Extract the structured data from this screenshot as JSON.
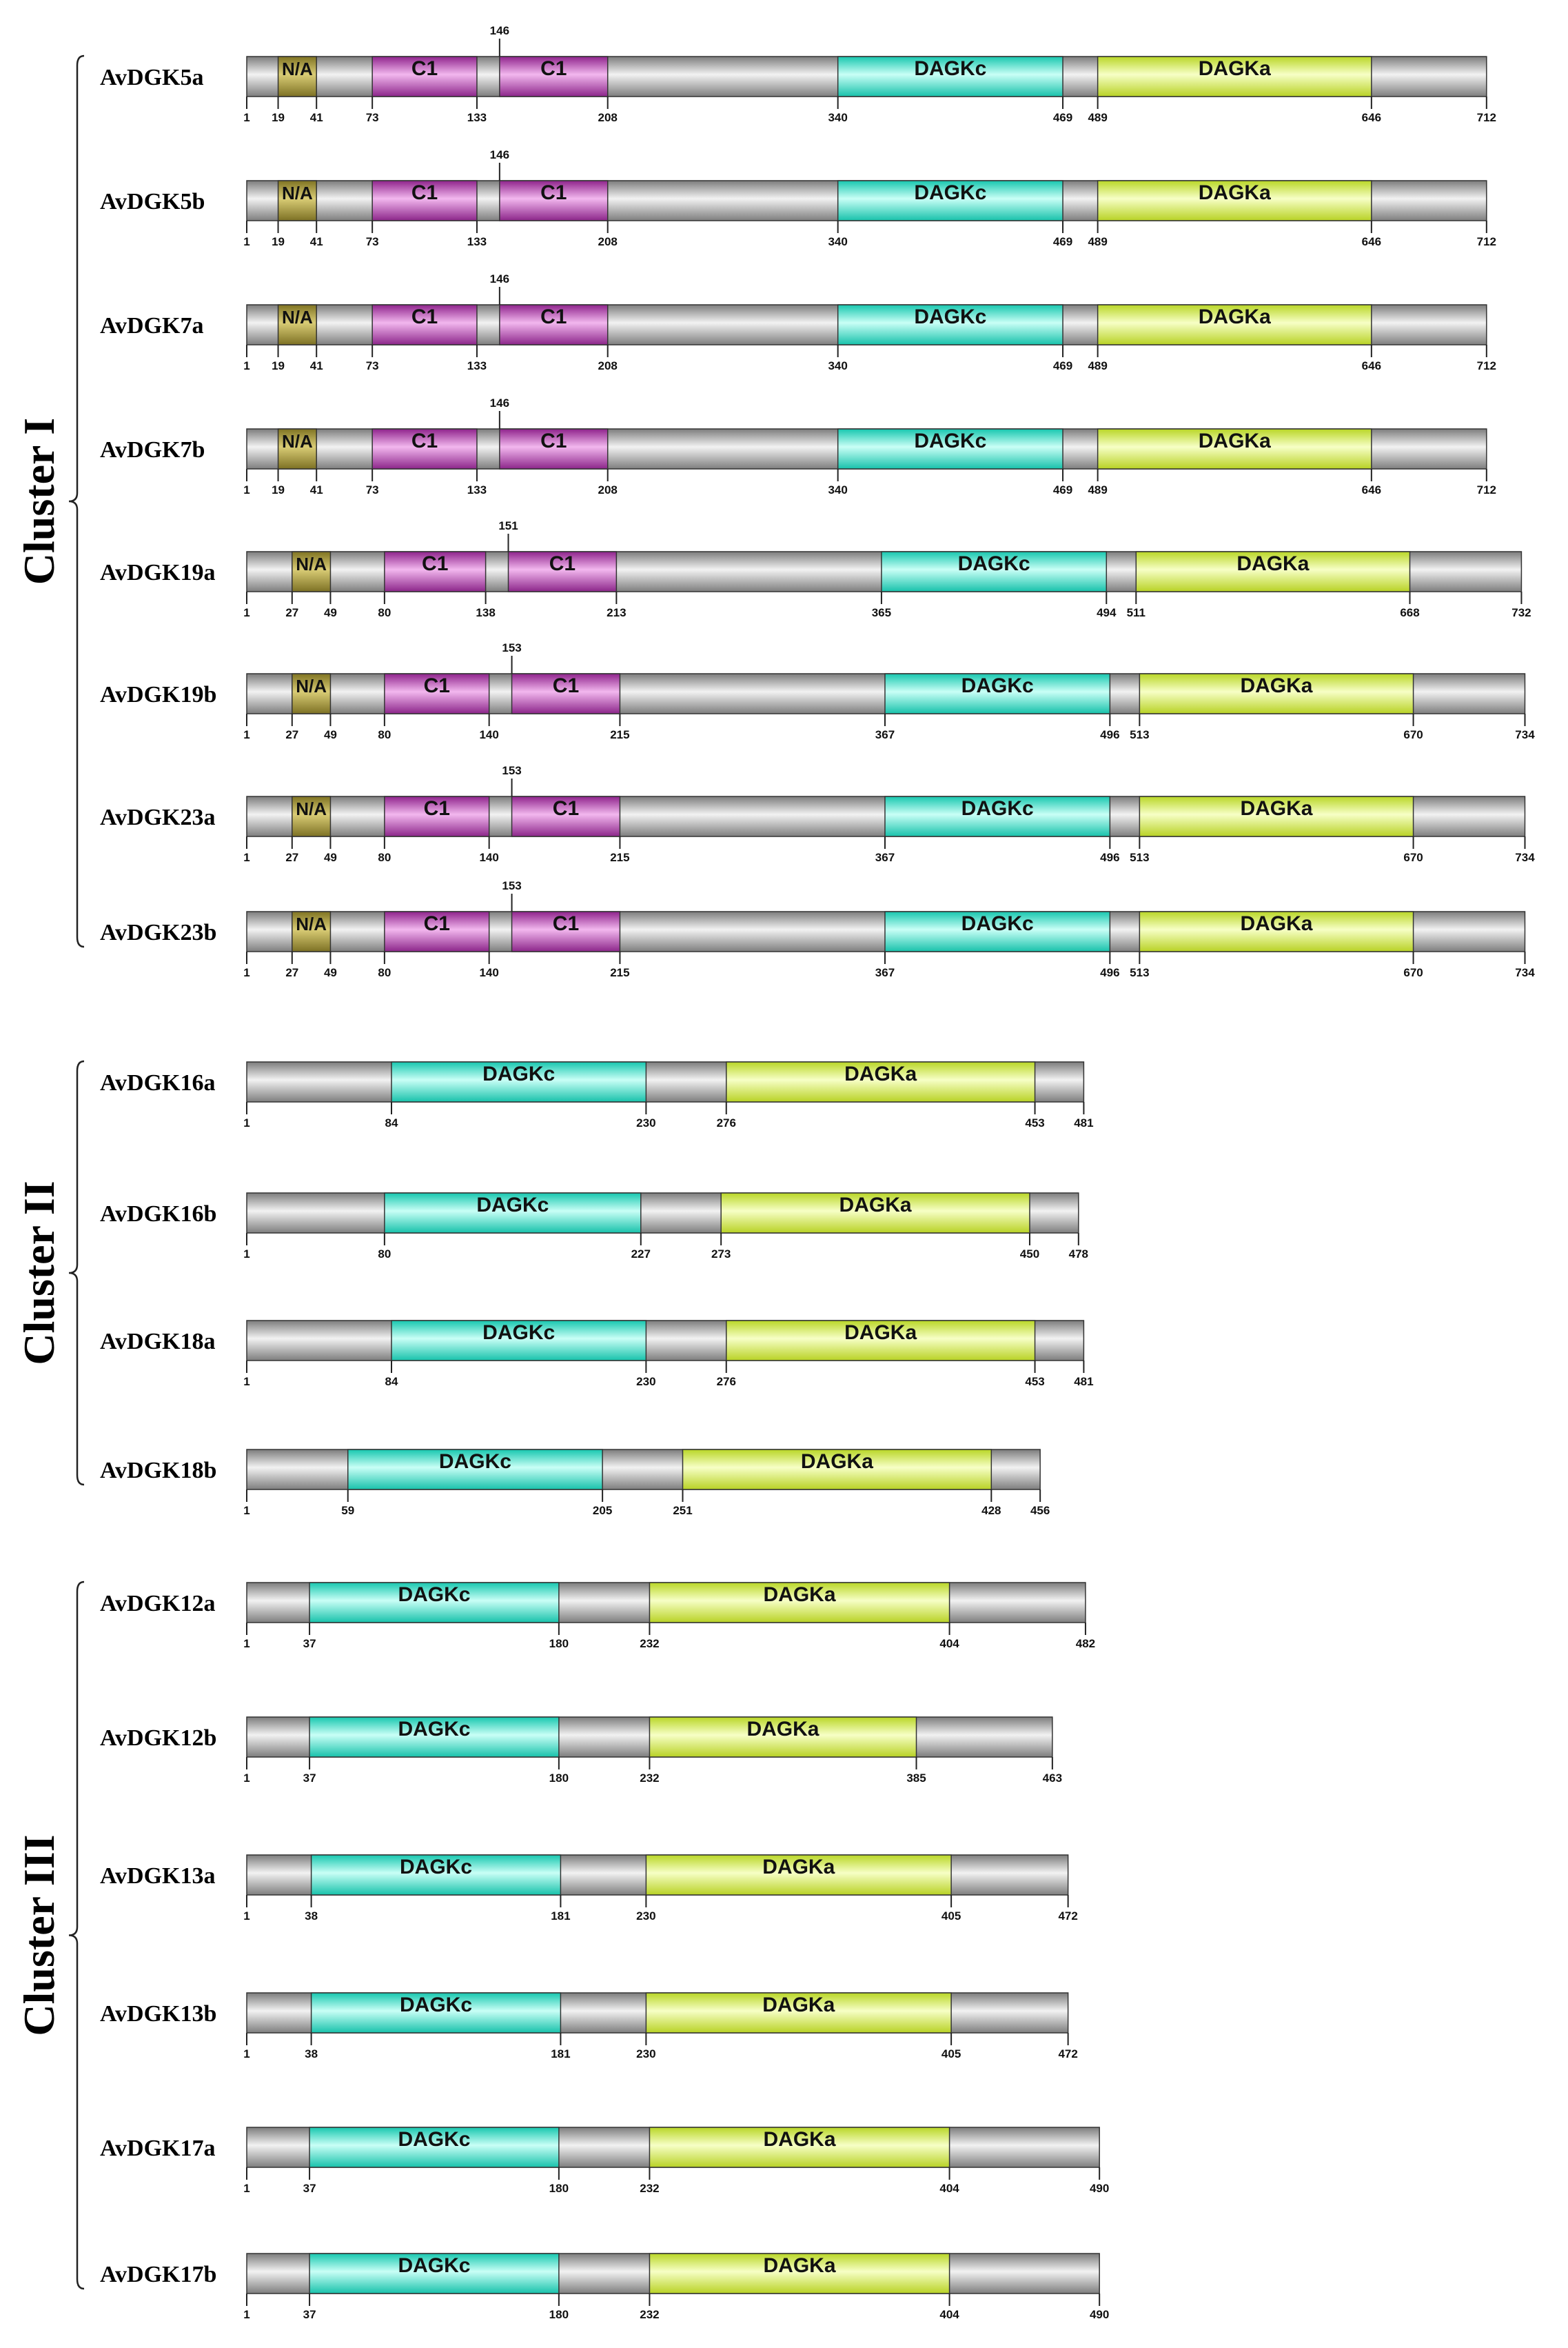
{
  "colors": {
    "C1": "#b93fb4",
    "DAGKc": "#3fe2cc",
    "DAGKa": "#daf254",
    "N/A": "#a79a3c",
    "backbone": "#a0a0a0"
  },
  "clusters": [
    {
      "label": "Cluster I",
      "proteins": [
        {
          "name": "AvDGK5a",
          "length": 712,
          "boundary_labels": [
            "1",
            "19",
            "41",
            "73",
            "133",
            "208",
            "340",
            "469",
            "489",
            "646",
            "712"
          ],
          "top_marker": "146",
          "domains": [
            {
              "type": "N/A",
              "label": "N/A",
              "start": 19,
              "end": 41
            },
            {
              "type": "C1",
              "label": "C1",
              "start": 73,
              "end": 133
            },
            {
              "type": "C1",
              "label": "C1",
              "start": 146,
              "end": 208
            },
            {
              "type": "DAGKc",
              "label": "DAGKc",
              "start": 340,
              "end": 469
            },
            {
              "type": "DAGKa",
              "label": "DAGKa",
              "start": 489,
              "end": 646
            }
          ]
        },
        {
          "name": "AvDGK5b",
          "length": 712,
          "boundary_labels": [
            "1",
            "19",
            "41",
            "73",
            "133",
            "208",
            "340",
            "469",
            "489",
            "646",
            "712"
          ],
          "top_marker": "146",
          "domains": [
            {
              "type": "N/A",
              "label": "N/A",
              "start": 19,
              "end": 41
            },
            {
              "type": "C1",
              "label": "C1",
              "start": 73,
              "end": 133
            },
            {
              "type": "C1",
              "label": "C1",
              "start": 146,
              "end": 208
            },
            {
              "type": "DAGKc",
              "label": "DAGKc",
              "start": 340,
              "end": 469
            },
            {
              "type": "DAGKa",
              "label": "DAGKa",
              "start": 489,
              "end": 646
            }
          ]
        },
        {
          "name": "AvDGK7a",
          "length": 712,
          "boundary_labels": [
            "1",
            "19",
            "41",
            "73",
            "133",
            "208",
            "340",
            "469",
            "489",
            "646",
            "712"
          ],
          "top_marker": "146",
          "domains": [
            {
              "type": "N/A",
              "label": "N/A",
              "start": 19,
              "end": 41
            },
            {
              "type": "C1",
              "label": "C1",
              "start": 73,
              "end": 133
            },
            {
              "type": "C1",
              "label": "C1",
              "start": 146,
              "end": 208
            },
            {
              "type": "DAGKc",
              "label": "DAGKc",
              "start": 340,
              "end": 469
            },
            {
              "type": "DAGKa",
              "label": "DAGKa",
              "start": 489,
              "end": 646
            }
          ]
        },
        {
          "name": "AvDGK7b",
          "length": 712,
          "boundary_labels": [
            "1",
            "19",
            "41",
            "73",
            "133",
            "208",
            "340",
            "469",
            "489",
            "646",
            "712"
          ],
          "top_marker": "146",
          "domains": [
            {
              "type": "N/A",
              "label": "N/A",
              "start": 19,
              "end": 41
            },
            {
              "type": "C1",
              "label": "C1",
              "start": 73,
              "end": 133
            },
            {
              "type": "C1",
              "label": "C1",
              "start": 146,
              "end": 208
            },
            {
              "type": "DAGKc",
              "label": "DAGKc",
              "start": 340,
              "end": 469
            },
            {
              "type": "DAGKa",
              "label": "DAGKa",
              "start": 489,
              "end": 646
            }
          ]
        },
        {
          "name": "AvDGK19a",
          "length": 732,
          "boundary_labels": [
            "1",
            "27",
            "49",
            "80",
            "138",
            "213",
            "365",
            "494",
            "511",
            "668",
            "732"
          ],
          "top_marker": "151",
          "domains": [
            {
              "type": "N/A",
              "label": "N/A",
              "start": 27,
              "end": 49
            },
            {
              "type": "C1",
              "label": "C1",
              "start": 80,
              "end": 138
            },
            {
              "type": "C1",
              "label": "C1",
              "start": 151,
              "end": 213
            },
            {
              "type": "DAGKc",
              "label": "DAGKc",
              "start": 365,
              "end": 494
            },
            {
              "type": "DAGKa",
              "label": "DAGKa",
              "start": 511,
              "end": 668
            }
          ]
        },
        {
          "name": "AvDGK19b",
          "length": 734,
          "boundary_labels": [
            "1",
            "27",
            "49",
            "80",
            "140",
            "215",
            "367",
            "496",
            "513",
            "670",
            "734"
          ],
          "top_marker": "153",
          "domains": [
            {
              "type": "N/A",
              "label": "N/A",
              "start": 27,
              "end": 49
            },
            {
              "type": "C1",
              "label": "C1",
              "start": 80,
              "end": 140
            },
            {
              "type": "C1",
              "label": "C1",
              "start": 153,
              "end": 215
            },
            {
              "type": "DAGKc",
              "label": "DAGKc",
              "start": 367,
              "end": 496
            },
            {
              "type": "DAGKa",
              "label": "DAGKa",
              "start": 513,
              "end": 670
            }
          ]
        },
        {
          "name": "AvDGK23a",
          "length": 734,
          "boundary_labels": [
            "1",
            "27",
            "49",
            "80",
            "140",
            "215",
            "367",
            "496",
            "513",
            "670",
            "734"
          ],
          "top_marker": "153",
          "domains": [
            {
              "type": "N/A",
              "label": "N/A",
              "start": 27,
              "end": 49
            },
            {
              "type": "C1",
              "label": "C1",
              "start": 80,
              "end": 140
            },
            {
              "type": "C1",
              "label": "C1",
              "start": 153,
              "end": 215
            },
            {
              "type": "DAGKc",
              "label": "DAGKc",
              "start": 367,
              "end": 496
            },
            {
              "type": "DAGKa",
              "label": "DAGKa",
              "start": 513,
              "end": 670
            }
          ]
        },
        {
          "name": "AvDGK23b",
          "length": 734,
          "boundary_labels": [
            "1",
            "27",
            "49",
            "80",
            "140",
            "215",
            "367",
            "496",
            "513",
            "670",
            "734"
          ],
          "top_marker": "153",
          "domains": [
            {
              "type": "N/A",
              "label": "N/A",
              "start": 27,
              "end": 49
            },
            {
              "type": "C1",
              "label": "C1",
              "start": 80,
              "end": 140
            },
            {
              "type": "C1",
              "label": "C1",
              "start": 153,
              "end": 215
            },
            {
              "type": "DAGKc",
              "label": "DAGKc",
              "start": 367,
              "end": 496
            },
            {
              "type": "DAGKa",
              "label": "DAGKa",
              "start": 513,
              "end": 670
            }
          ]
        }
      ]
    },
    {
      "label": "Cluster II",
      "proteins": [
        {
          "name": "AvDGK16a",
          "length": 481,
          "boundary_labels": [
            "1",
            "84",
            "230",
            "276",
            "453",
            "481"
          ],
          "top_marker": "",
          "domains": [
            {
              "type": "DAGKc",
              "label": "DAGKc",
              "start": 84,
              "end": 230
            },
            {
              "type": "DAGKa",
              "label": "DAGKa",
              "start": 276,
              "end": 453
            }
          ]
        },
        {
          "name": "AvDGK16b",
          "length": 478,
          "boundary_labels": [
            "1",
            "80",
            "227",
            "273",
            "450",
            "478"
          ],
          "top_marker": "",
          "domains": [
            {
              "type": "DAGKc",
              "label": "DAGKc",
              "start": 80,
              "end": 227
            },
            {
              "type": "DAGKa",
              "label": "DAGKa",
              "start": 273,
              "end": 450
            }
          ]
        },
        {
          "name": "AvDGK18a",
          "length": 481,
          "boundary_labels": [
            "1",
            "84",
            "230",
            "276",
            "453",
            "481"
          ],
          "top_marker": "",
          "domains": [
            {
              "type": "DAGKc",
              "label": "DAGKc",
              "start": 84,
              "end": 230
            },
            {
              "type": "DAGKa",
              "label": "DAGKa",
              "start": 276,
              "end": 453
            }
          ]
        },
        {
          "name": "AvDGK18b",
          "length": 456,
          "boundary_labels": [
            "1",
            "59",
            "205",
            "251",
            "428",
            "456"
          ],
          "top_marker": "",
          "domains": [
            {
              "type": "DAGKc",
              "label": "DAGKc",
              "start": 59,
              "end": 205
            },
            {
              "type": "DAGKa",
              "label": "DAGKa",
              "start": 251,
              "end": 428
            }
          ]
        }
      ]
    },
    {
      "label": "Cluster III",
      "proteins": [
        {
          "name": "AvDGK12a",
          "length": 482,
          "boundary_labels": [
            "1",
            "37",
            "180",
            "232",
            "404",
            "482"
          ],
          "top_marker": "",
          "domains": [
            {
              "type": "DAGKc",
              "label": "DAGKc",
              "start": 37,
              "end": 180
            },
            {
              "type": "DAGKa",
              "label": "DAGKa",
              "start": 232,
              "end": 404
            }
          ]
        },
        {
          "name": "AvDGK12b",
          "length": 463,
          "boundary_labels": [
            "1",
            "37",
            "180",
            "232",
            "385",
            "463"
          ],
          "top_marker": "",
          "domains": [
            {
              "type": "DAGKc",
              "label": "DAGKc",
              "start": 37,
              "end": 180
            },
            {
              "type": "DAGKa",
              "label": "DAGKa",
              "start": 232,
              "end": 385
            }
          ]
        },
        {
          "name": "AvDGK13a",
          "length": 472,
          "boundary_labels": [
            "1",
            "38",
            "181",
            "230",
            "405",
            "472"
          ],
          "top_marker": "",
          "domains": [
            {
              "type": "DAGKc",
              "label": "DAGKc",
              "start": 38,
              "end": 181
            },
            {
              "type": "DAGKa",
              "label": "DAGKa",
              "start": 230,
              "end": 405
            }
          ]
        },
        {
          "name": "AvDGK13b",
          "length": 472,
          "boundary_labels": [
            "1",
            "38",
            "181",
            "230",
            "405",
            "472"
          ],
          "top_marker": "",
          "domains": [
            {
              "type": "DAGKc",
              "label": "DAGKc",
              "start": 38,
              "end": 181
            },
            {
              "type": "DAGKa",
              "label": "DAGKa",
              "start": 230,
              "end": 405
            }
          ]
        },
        {
          "name": "AvDGK17a",
          "length": 490,
          "boundary_labels": [
            "1",
            "37",
            "180",
            "232",
            "404",
            "490"
          ],
          "top_marker": "",
          "domains": [
            {
              "type": "DAGKc",
              "label": "DAGKc",
              "start": 37,
              "end": 180
            },
            {
              "type": "DAGKa",
              "label": "DAGKa",
              "start": 232,
              "end": 404
            }
          ]
        },
        {
          "name": "AvDGK17b",
          "length": 490,
          "boundary_labels": [
            "1",
            "37",
            "180",
            "232",
            "404",
            "490"
          ],
          "top_marker": "",
          "domains": [
            {
              "type": "DAGKc",
              "label": "DAGKc",
              "start": 37,
              "end": 180
            },
            {
              "type": "DAGKa",
              "label": "DAGKa",
              "start": 232,
              "end": 404
            }
          ]
        }
      ]
    }
  ]
}
